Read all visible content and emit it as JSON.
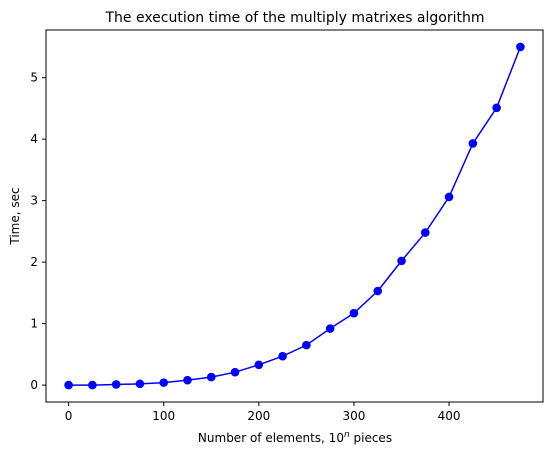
{
  "chart_data": {
    "type": "line",
    "title": "The execution time of the multiply matrixes algorithm",
    "xlabel": {
      "prefix": "Number of elements, 10",
      "sup": "n",
      "suffix": " pieces"
    },
    "ylabel": "Time, sec",
    "xlim": [
      -23.75,
      498.75
    ],
    "ylim": [
      -0.275,
      5.775
    ],
    "xticks": [
      0,
      100,
      200,
      300,
      400
    ],
    "yticks": [
      0,
      1,
      2,
      3,
      4,
      5
    ],
    "grid": false,
    "series": [
      {
        "color": "#0000ff",
        "marker": "circle",
        "x": [
          0,
          25,
          50,
          75,
          100,
          125,
          150,
          175,
          200,
          225,
          250,
          275,
          300,
          325,
          350,
          375,
          400,
          425,
          450,
          475
        ],
        "y": [
          0.0,
          0.0,
          0.01,
          0.02,
          0.04,
          0.08,
          0.13,
          0.21,
          0.33,
          0.47,
          0.65,
          0.92,
          1.17,
          1.53,
          2.02,
          2.48,
          3.06,
          3.93,
          4.51,
          5.5
        ]
      }
    ]
  }
}
